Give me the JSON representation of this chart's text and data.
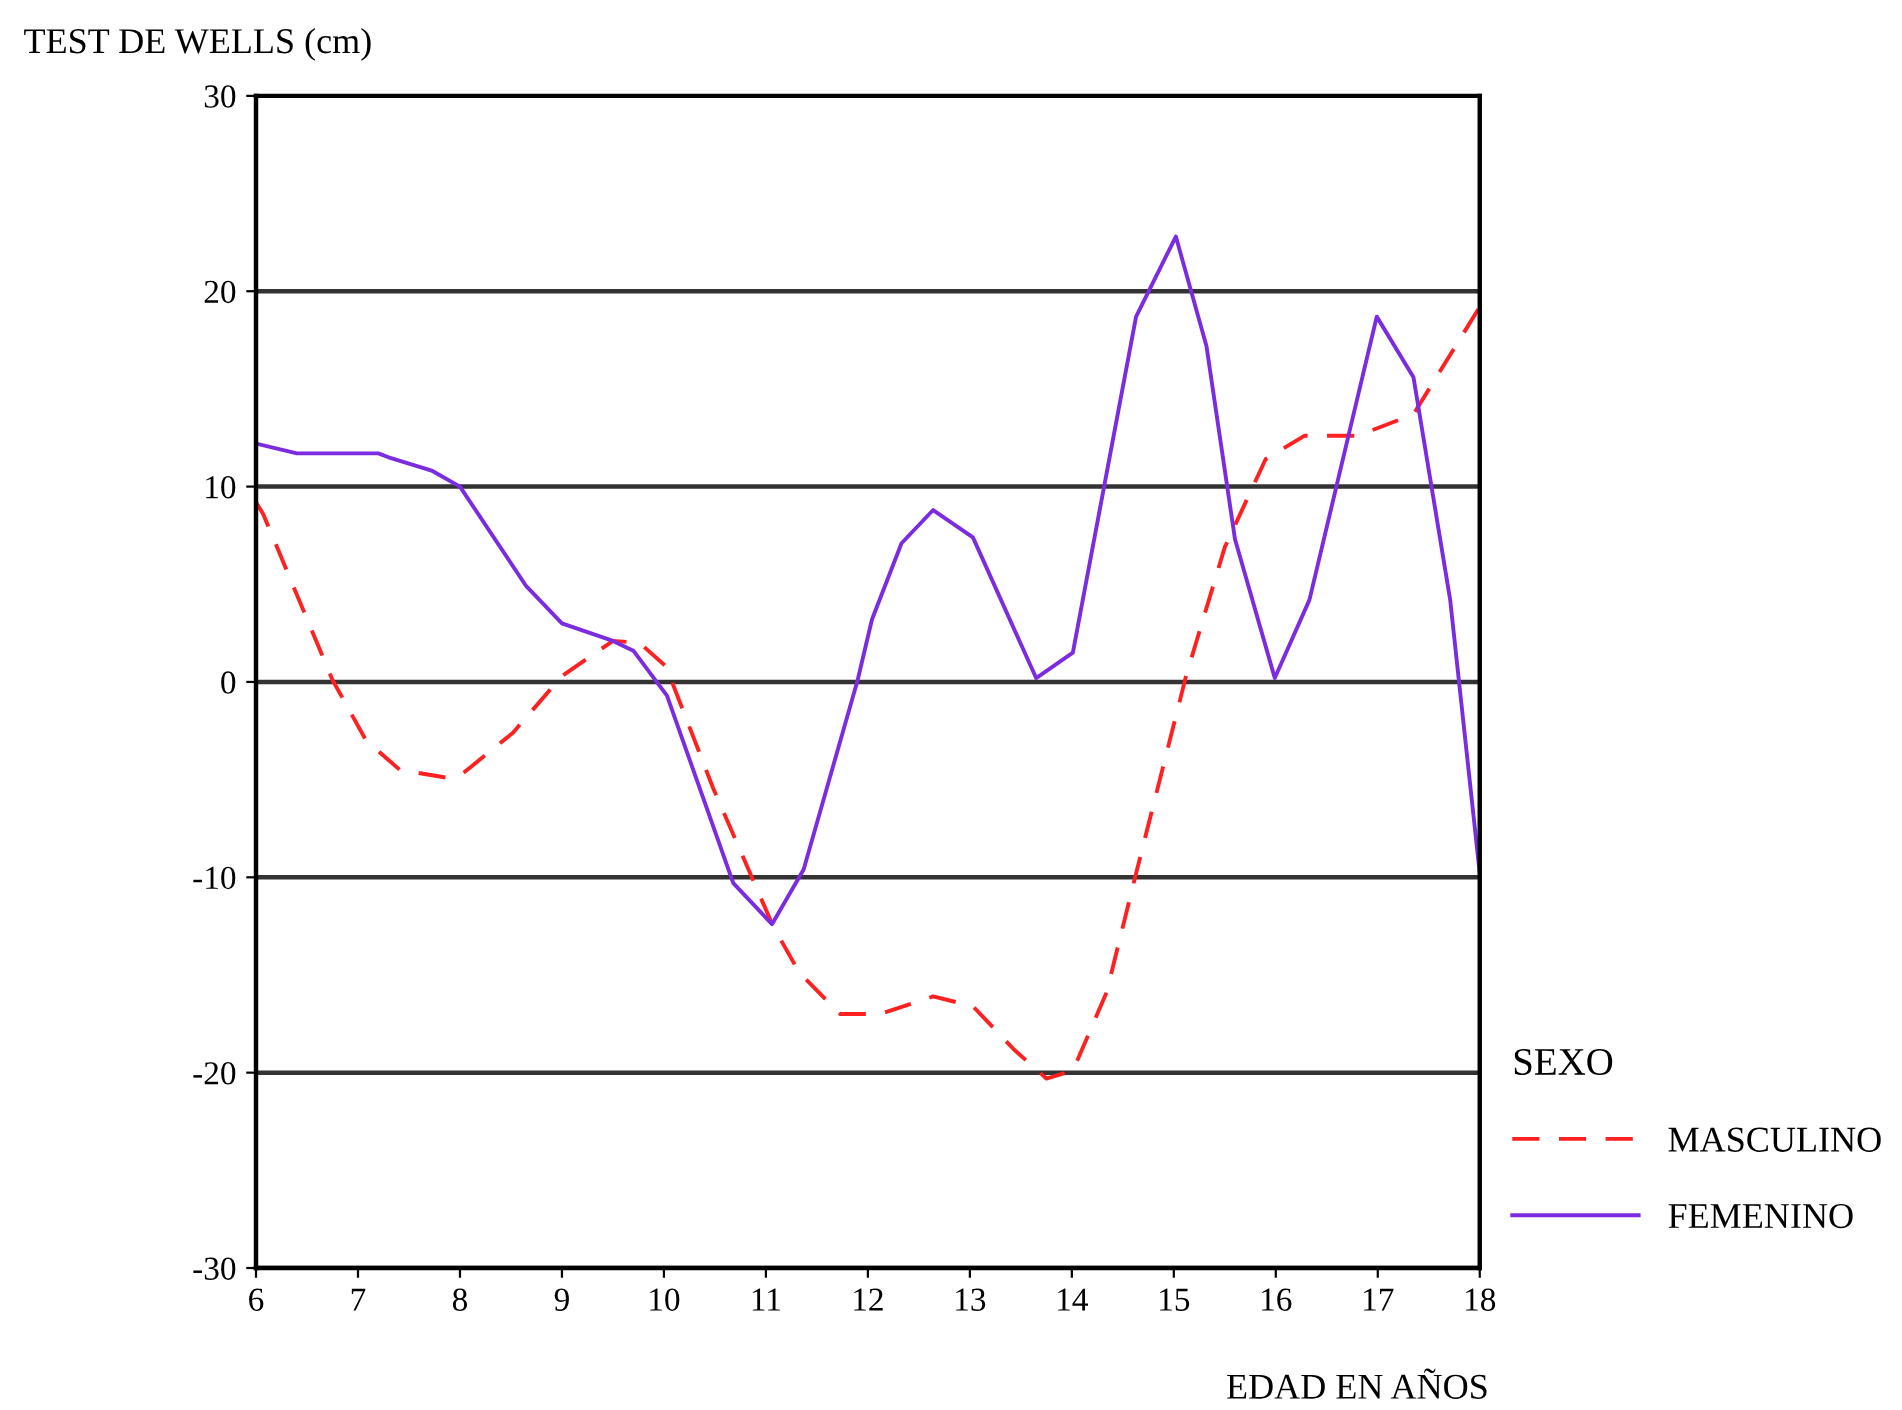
{
  "chart_data": {
    "type": "line",
    "xlabel": "EDAD EN AÑOS",
    "ylabel": "TEST DE WELLS (cm)",
    "legend_title": "SEXO",
    "series": [
      {
        "name": "MASCULINO",
        "color": "#ff2020",
        "line_style": "dashed",
        "x": [
          6,
          6.07,
          6.75,
          7.08,
          7.41,
          7.87,
          8.0,
          8.52,
          9.0,
          9.5,
          9.76,
          10.02,
          10.48,
          11.07,
          11.33,
          11.73,
          12.12,
          12.64,
          13.03,
          13.43,
          13.75,
          14.01,
          14.34,
          14.63,
          15.12,
          15.5,
          15.9,
          16.28,
          16.8,
          17.35,
          18.0
        ],
        "values": [
          9.2,
          8.6,
          0.1,
          -3.0,
          -4.5,
          -4.9,
          -4.8,
          -2.6,
          0.3,
          2.1,
          2.0,
          0.8,
          -5.4,
          -12.5,
          -14.9,
          -17.0,
          -17.0,
          -16.1,
          -16.6,
          -18.8,
          -20.3,
          -19.9,
          -15.9,
          -9.8,
          0.3,
          6.9,
          11.4,
          12.6,
          12.6,
          13.7,
          19.2
        ]
      },
      {
        "name": "FEMENINO",
        "color": "#7b2be0",
        "line_style": "solid",
        "x": [
          6,
          6.4,
          7.2,
          7.3,
          7.73,
          8.0,
          8.65,
          9.0,
          9.5,
          9.7,
          10.03,
          10.68,
          11.06,
          11.37,
          11.9,
          12.04,
          12.33,
          12.64,
          13.03,
          13.65,
          14.01,
          14.63,
          15.02,
          15.32,
          15.6,
          15.99,
          16.33,
          16.99,
          17.35,
          17.71,
          18.0
        ],
        "values": [
          12.2,
          11.7,
          11.7,
          11.5,
          10.8,
          10.0,
          4.9,
          3.0,
          2.1,
          1.6,
          -0.7,
          -10.3,
          -12.4,
          -9.6,
          0.1,
          3.2,
          7.1,
          8.8,
          7.4,
          0.2,
          1.5,
          18.7,
          22.8,
          17.2,
          7.3,
          0.2,
          4.2,
          18.7,
          15.6,
          4.2,
          -9.8
        ]
      }
    ],
    "xlim": [
      6,
      18
    ],
    "xticks": [
      6,
      7,
      8,
      9,
      10,
      11,
      12,
      13,
      14,
      15,
      16,
      17,
      18
    ],
    "ylim": [
      -30,
      30
    ],
    "yticks": [
      -30,
      -20,
      -10,
      0,
      10,
      20,
      30
    ],
    "grid": "y",
    "legend": "bottom right",
    "marker": "none"
  }
}
